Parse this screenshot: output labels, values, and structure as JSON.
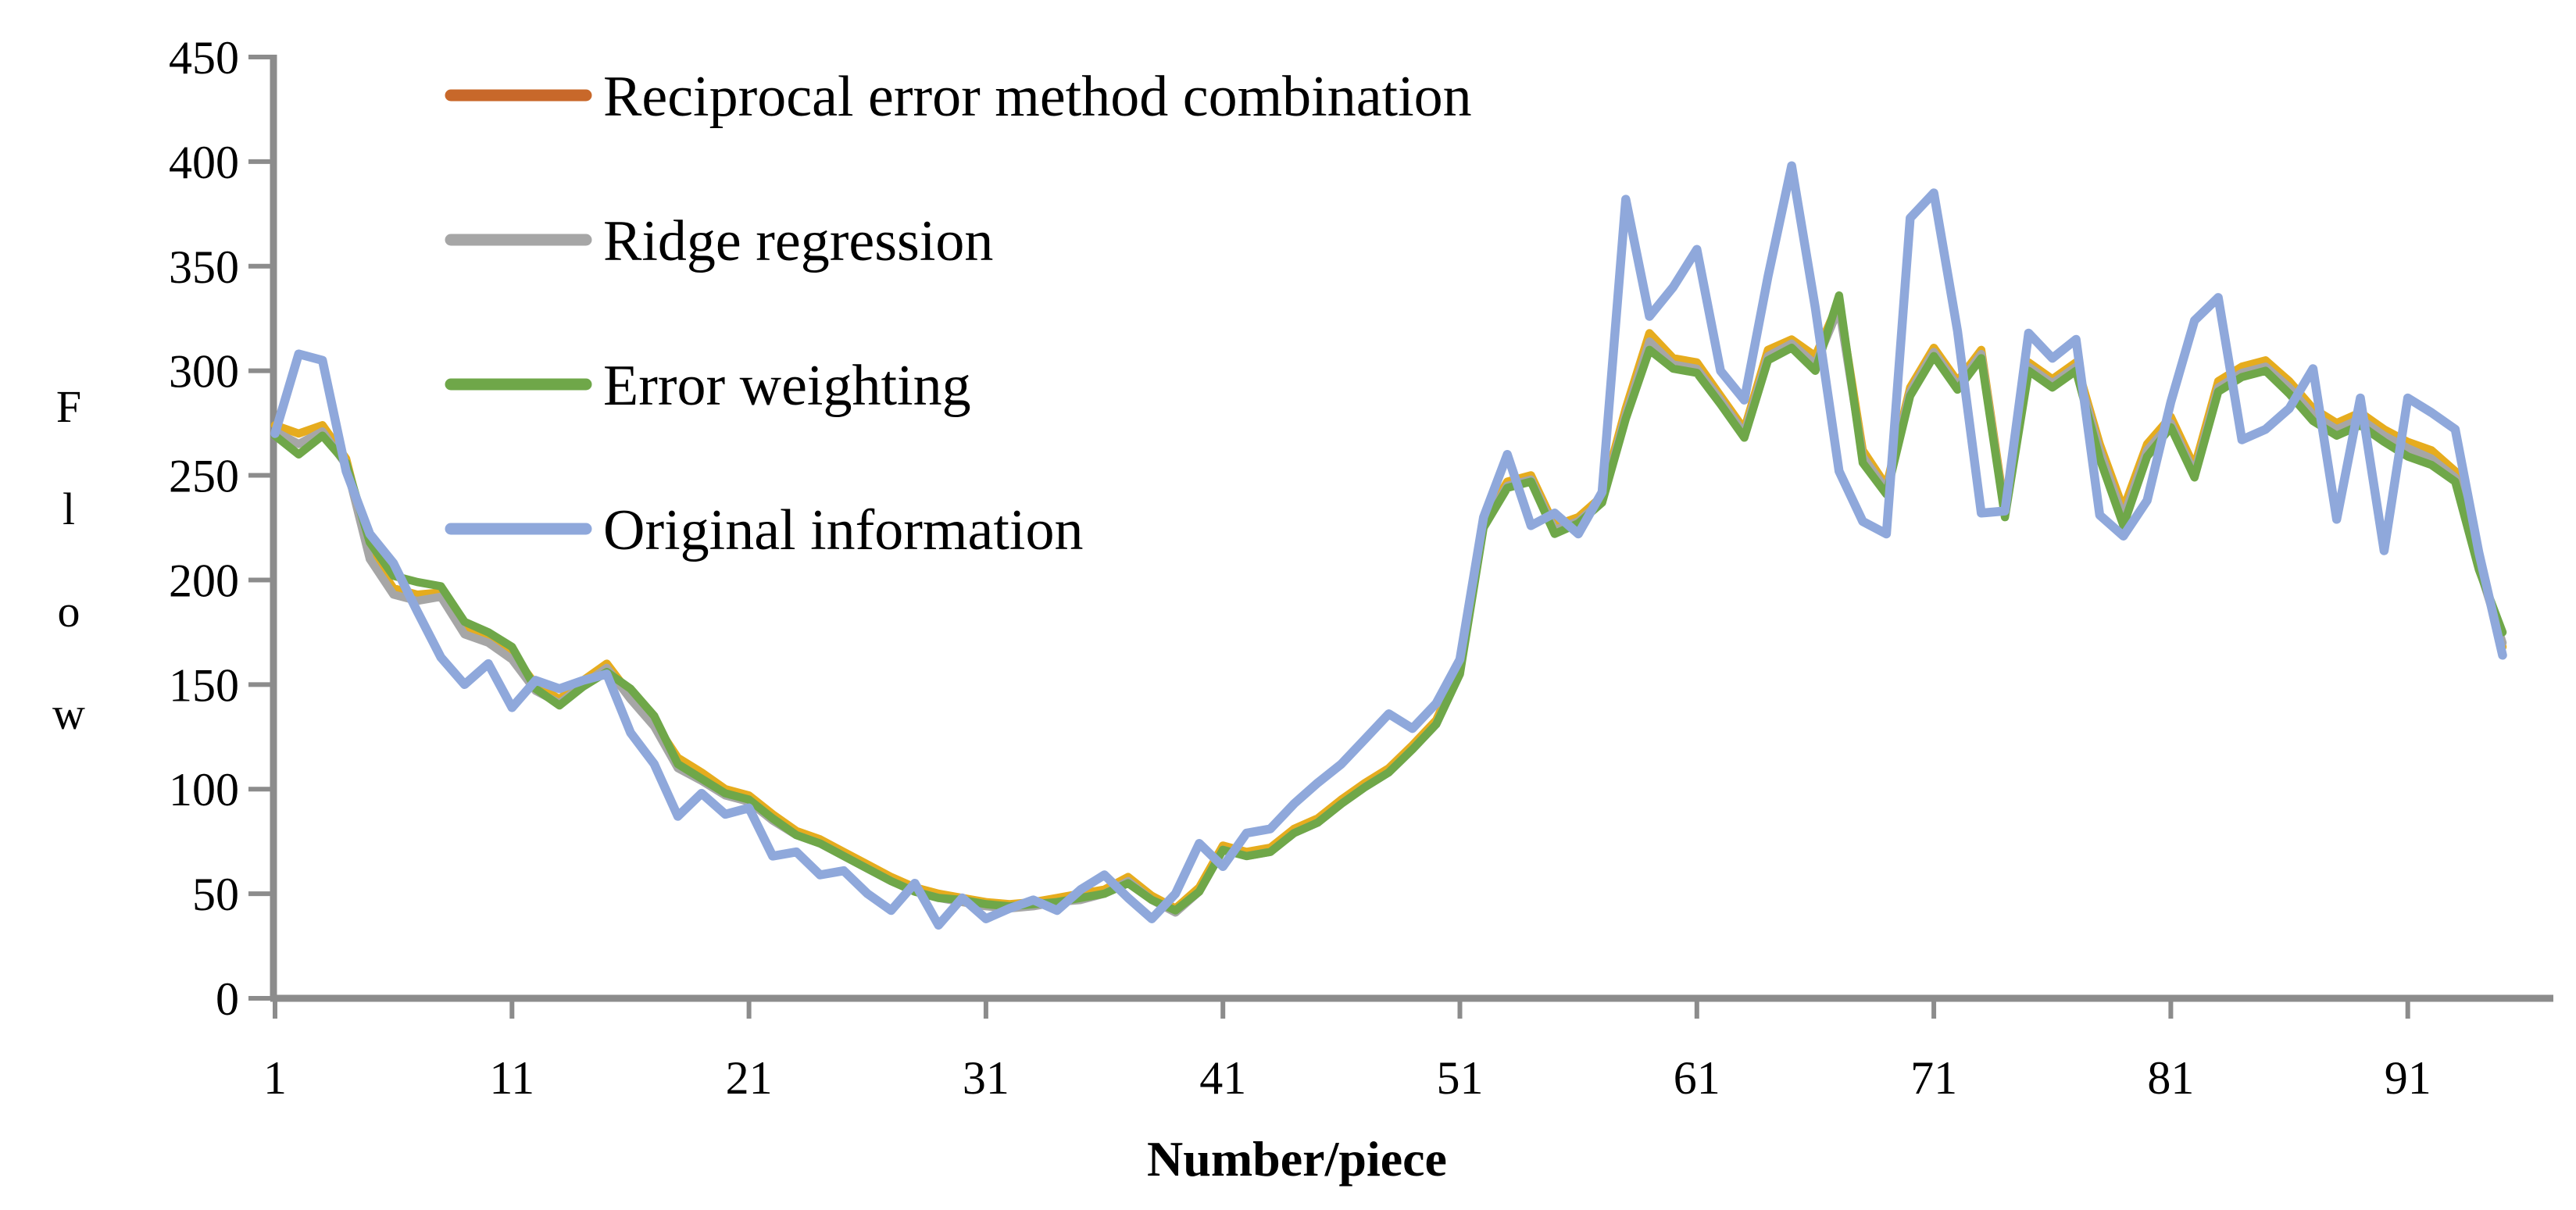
{
  "figure": {
    "background": "#ffffff",
    "axis_color": "#8c8c8c",
    "text_color": "#000000"
  },
  "chart_data": {
    "type": "line",
    "title": "",
    "xlabel": "Number/piece",
    "ylabel": "Flow",
    "ylabel_letters": [
      "F",
      "l",
      "o",
      "w"
    ],
    "ylim": [
      0,
      450
    ],
    "yticks": [
      0,
      50,
      100,
      150,
      200,
      250,
      300,
      350,
      400,
      450
    ],
    "xticks": [
      1,
      11,
      21,
      31,
      41,
      51,
      61,
      71,
      81,
      91
    ],
    "x_count": 95,
    "grid": false,
    "legend_position": "top-left-inside",
    "series": [
      {
        "name": "Reciprocal error method combination",
        "line_color": "#E6AC1E",
        "legend_color": "#C8682A",
        "values": [
          274,
          270,
          274,
          258,
          213,
          196,
          193,
          194,
          177,
          172,
          165,
          150,
          143,
          152,
          160,
          145,
          132,
          115,
          108,
          100,
          97,
          88,
          80,
          76,
          70,
          64,
          58,
          53,
          50,
          48,
          46,
          45,
          46,
          48,
          50,
          52,
          58,
          49,
          43,
          53,
          73,
          70,
          72,
          81,
          86,
          95,
          103,
          110,
          121,
          133,
          158,
          228,
          247,
          250,
          226,
          230,
          240,
          282,
          318,
          306,
          304,
          288,
          272,
          310,
          315,
          307,
          333,
          262,
          245,
          292,
          311,
          295,
          310,
          233,
          304,
          296,
          304,
          265,
          234,
          265,
          278,
          254,
          295,
          302,
          305,
          295,
          282,
          275,
          280,
          272,
          266,
          262,
          252,
          208,
          168
        ]
      },
      {
        "name": "Ridge regression",
        "line_color": "#A6A6A6",
        "legend_color": "#A6A6A6",
        "values": [
          271,
          265,
          271,
          255,
          210,
          193,
          190,
          192,
          174,
          170,
          162,
          147,
          141,
          150,
          158,
          143,
          130,
          110,
          104,
          97,
          94,
          85,
          78,
          74,
          68,
          62,
          56,
          51,
          48,
          46,
          44,
          43,
          44,
          46,
          47,
          50,
          56,
          47,
          41,
          51,
          71,
          68,
          70,
          79,
          84,
          93,
          101,
          108,
          119,
          131,
          156,
          226,
          245,
          248,
          224,
          228,
          238,
          279,
          314,
          303,
          301,
          286,
          270,
          307,
          313,
          303,
          330,
          259,
          243,
          290,
          309,
          293,
          308,
          231,
          302,
          294,
          302,
          262,
          230,
          262,
          275,
          251,
          292,
          299,
          302,
          292,
          279,
          272,
          277,
          269,
          263,
          258,
          249,
          206,
          170
        ]
      },
      {
        "name": "Error weighting",
        "line_color": "#6FA749",
        "legend_color": "#6FA749",
        "values": [
          269,
          260,
          269,
          256,
          218,
          202,
          199,
          197,
          180,
          175,
          168,
          148,
          140,
          149,
          156,
          148,
          135,
          112,
          105,
          98,
          95,
          86,
          78,
          74,
          68,
          62,
          56,
          51,
          48,
          47,
          45,
          44,
          45,
          46,
          48,
          50,
          55,
          47,
          42,
          51,
          71,
          68,
          70,
          79,
          84,
          93,
          101,
          108,
          119,
          131,
          155,
          225,
          244,
          247,
          222,
          227,
          237,
          277,
          310,
          301,
          299,
          284,
          268,
          305,
          311,
          300,
          336,
          256,
          241,
          288,
          307,
          291,
          306,
          230,
          300,
          292,
          300,
          258,
          226,
          259,
          273,
          249,
          290,
          297,
          300,
          289,
          276,
          269,
          274,
          266,
          259,
          255,
          247,
          205,
          175
        ]
      },
      {
        "name": "Original information",
        "line_color": "#8FA8DB",
        "legend_color": "#8FA8DB",
        "values": [
          270,
          308,
          305,
          252,
          222,
          208,
          185,
          163,
          150,
          160,
          139,
          152,
          148,
          152,
          155,
          127,
          112,
          87,
          98,
          88,
          91,
          68,
          70,
          59,
          61,
          50,
          42,
          55,
          35,
          48,
          38,
          43,
          47,
          42,
          52,
          59,
          48,
          38,
          50,
          74,
          63,
          79,
          81,
          93,
          103,
          112,
          124,
          136,
          129,
          141,
          162,
          230,
          260,
          226,
          232,
          222,
          242,
          382,
          326,
          340,
          358,
          300,
          286,
          345,
          398,
          330,
          252,
          228,
          222,
          373,
          385,
          319,
          232,
          233,
          318,
          306,
          315,
          231,
          221,
          238,
          285,
          324,
          335,
          267,
          272,
          282,
          301,
          229,
          287,
          214,
          287,
          280,
          272,
          213,
          164
        ]
      }
    ]
  },
  "legend": {
    "items": [
      {
        "label": "Reciprocal error method combination"
      },
      {
        "label": "Ridge regression"
      },
      {
        "label": "Error weighting"
      },
      {
        "label": "Original information"
      }
    ]
  }
}
